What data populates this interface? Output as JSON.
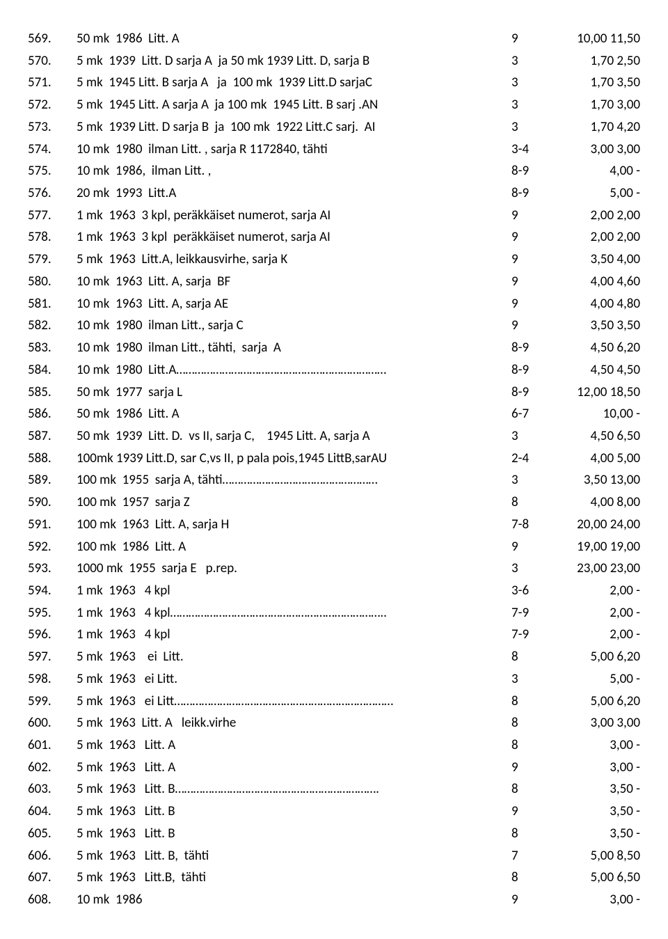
{
  "rows": [
    {
      "n": "569.",
      "d": "50 mk  1986  Litt. A",
      "g": "9",
      "p": "10,00 11,50"
    },
    {
      "n": "570.",
      "d": "5 mk  1939  Litt. D sarja A  ja 50 mk 1939 Litt. D, sarja B",
      "g": "3",
      "p": "1,70 2,50"
    },
    {
      "n": "571.",
      "d": "5 mk  1945 Litt. B sarja A   ja  100 mk  1939 Litt.D sarjaC",
      "g": "3",
      "p": "1,70 3,50"
    },
    {
      "n": "572.",
      "d": "5 mk  1945 Litt. A sarja A  ja 100 mk  1945 Litt. B sarj .AN",
      "g": "3",
      "p": "1,70 3,00"
    },
    {
      "n": "573.",
      "d": "5 mk  1939 Litt. D sarja B  ja  100 mk  1922 Litt.C sarj.  AI",
      "g": "3",
      "p": "1,70 4,20"
    },
    {
      "n": "574.",
      "d": "10 mk  1980  ilman Litt. , sarja R 1172840, tähti",
      "g": "3-4",
      "p": "3,00 3,00"
    },
    {
      "n": "575.",
      "d": "10 mk  1986,  ilman Litt. ,",
      "g": "8-9",
      "p": "4,00 -"
    },
    {
      "n": "576.",
      "d": "20 mk  1993  Litt.A",
      "g": "8-9",
      "p": "5,00 -"
    },
    {
      "n": "577.",
      "d": "1 mk  1963  3 kpl, peräkkäiset numerot, sarja AI",
      "g": "9",
      "p": "2,00 2,00"
    },
    {
      "n": "578.",
      "d": "1 mk  1963  3 kpl  peräkkäiset numerot, sarja AI",
      "g": "9",
      "p": "2,00 2,00"
    },
    {
      "n": "579.",
      "d": "5 mk  1963  Litt.A, leikkausvirhe, sarja K",
      "g": "9",
      "p": "3,50 4,00"
    },
    {
      "n": "580.",
      "d": "10 mk  1963  Litt. A, sarja  BF",
      "g": "9",
      "p": "4,00 4,60"
    },
    {
      "n": "581.",
      "d": "10 mk  1963  Litt. A, sarja AE",
      "g": "9",
      "p": "4,00 4,80"
    },
    {
      "n": "582.",
      "d": "10 mk  1980  ilman Litt., sarja C",
      "g": "9",
      "p": "3,50 3,50"
    },
    {
      "n": "583.",
      "d": "10 mk  1980  ilman Litt., tähti,  sarja  A",
      "g": "8-9",
      "p": "4,50 6,20"
    },
    {
      "n": "584.",
      "d": "10 mk  1980  Litt.A……………………………………………………………",
      "g": "8-9",
      "p": "4,50 4,50"
    },
    {
      "n": "585.",
      "d": "50 mk  1977  sarja L",
      "g": "8-9",
      "p": "12,00 18,50"
    },
    {
      "n": "586.",
      "d": "50 mk  1986  Litt. A",
      "g": "6-7",
      "p": "10,00 -"
    },
    {
      "n": "587.",
      "d": "50 mk  1939  Litt. D.  vs II, sarja C,    1945 Litt. A, sarja A",
      "g": "3",
      "p": "4,50 6,50"
    },
    {
      "n": "588.",
      "d": "100mk 1939 Litt.D, sar C,vs II, p pala pois,1945 LittB,sarAU",
      "g": "2-4",
      "p": "4,00 5,00"
    },
    {
      "n": "589.",
      "d": "100 mk  1955  sarja A, tähti……………………………………………",
      "g": "3",
      "p": "3,50 13,00"
    },
    {
      "n": "590.",
      "d": "100 mk  1957  sarja Z",
      "g": "8",
      "p": "4,00 8,00"
    },
    {
      "n": "591.",
      "d": "100 mk  1963  Litt. A, sarja H",
      "g": "7-8",
      "p": "20,00 24,00"
    },
    {
      "n": "592.",
      "d": "100 mk  1986  Litt. A",
      "g": "9",
      "p": "19,00 19,00"
    },
    {
      "n": "593.",
      "d": "1000 mk  1955  sarja E   p.rep.",
      "g": "3",
      "p": "23,00 23,00"
    },
    {
      "n": "594.",
      "d": "1 mk  1963   4 kpl",
      "g": "3-6",
      "p": "2,00 -"
    },
    {
      "n": "595.",
      "d": "1 mk  1963   4 kpl……………………………………………………………..",
      "g": "7-9",
      "p": "2,00 -"
    },
    {
      "n": "596.",
      "d": "1 mk  1963   4 kpl",
      "g": "7-9",
      "p": "2,00 -"
    },
    {
      "n": "597.",
      "d": "5 mk  1963    ei  Litt.",
      "g": "8",
      "p": "5,00 6,20"
    },
    {
      "n": "598.",
      "d": "5 mk  1963   ei Litt.",
      "g": "3",
      "p": "5,00 -"
    },
    {
      "n": "599.",
      "d": "5 mk  1963   ei Litt………………………………………………………………",
      "g": "8",
      "p": "5,00 6,20"
    },
    {
      "n": "600.",
      "d": "5 mk  1963  Litt. A   leikk.virhe",
      "g": "8",
      "p": "3,00 3,00"
    },
    {
      "n": "601.",
      "d": "5 mk  1963   Litt. A",
      "g": "8",
      "p": "3,00 -"
    },
    {
      "n": "602.",
      "d": "5 mk  1963   Litt. A",
      "g": "9",
      "p": "3,00 -"
    },
    {
      "n": "603.",
      "d": "5 mk  1963   Litt. B………………………………………………………….",
      "g": "8",
      "p": "3,50 -"
    },
    {
      "n": "604.",
      "d": "5 mk  1963   Litt. B",
      "g": "9",
      "p": "3,50 -"
    },
    {
      "n": "605.",
      "d": "5 mk  1963   Litt. B",
      "g": "8",
      "p": "3,50 -"
    },
    {
      "n": "606.",
      "d": "5 mk  1963   Litt. B,  tähti",
      "g": "7",
      "p": "5,00 8,50"
    },
    {
      "n": "607.",
      "d": "5 mk  1963   Litt.B,  tähti",
      "g": "8",
      "p": "5,00 6,50"
    },
    {
      "n": "608.",
      "d": "10 mk  1986",
      "g": "9",
      "p": "3,00 -"
    }
  ]
}
